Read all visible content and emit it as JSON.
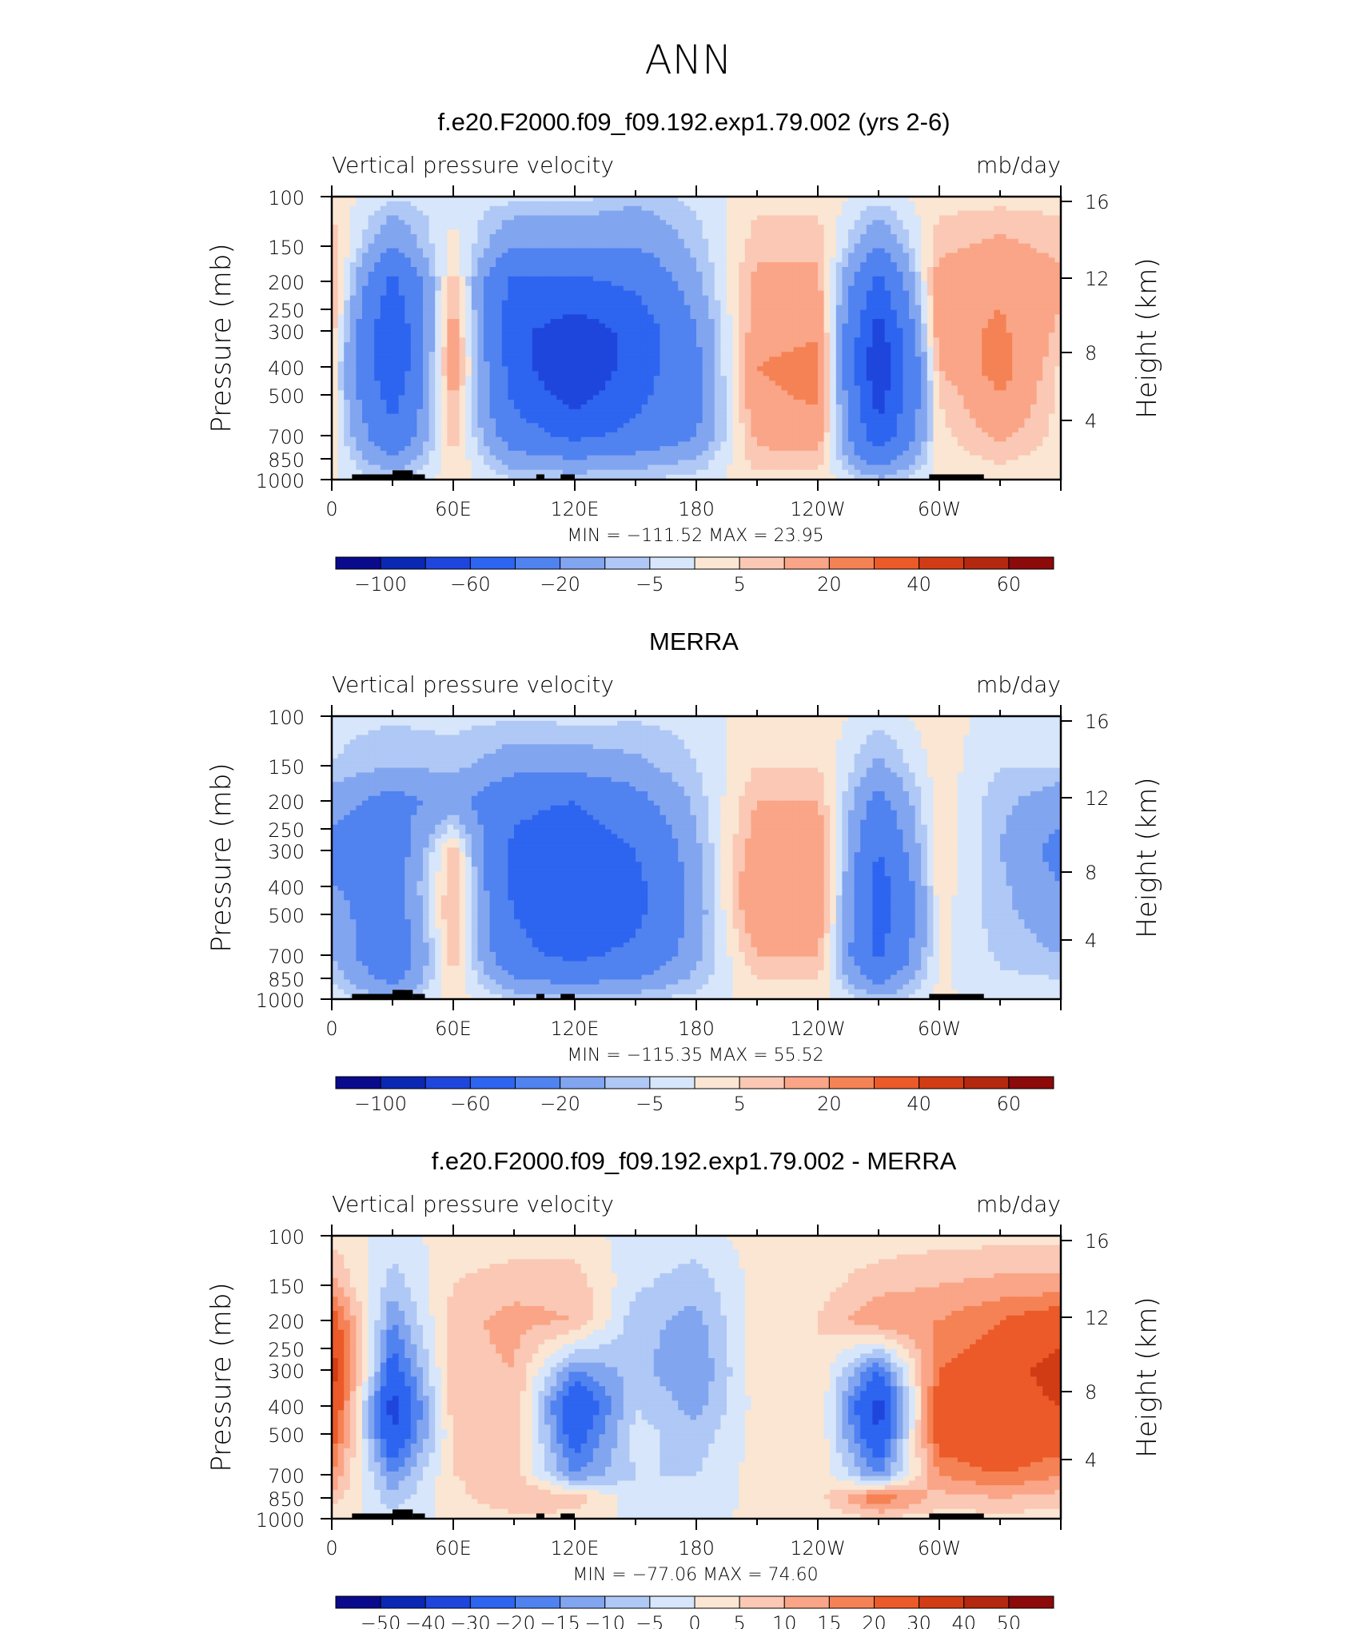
{
  "suptitle": "ANN",
  "panels": [
    {
      "title": "f.e20.F2000.f09_f09.192.exp1.79.002 (yrs 2-6)",
      "left_label": "Vertical pressure velocity",
      "right_label": "mb/day",
      "min_max": "MIN = −111.52   MAX =   23.95",
      "colorbar_labels": [
        "−100",
        "−60",
        "−20",
        "−5",
        "5",
        "20",
        "40",
        "60"
      ]
    },
    {
      "title": "MERRA",
      "left_label": "Vertical pressure velocity",
      "right_label": "mb/day",
      "min_max": "MIN = −115.35   MAX =   55.52",
      "colorbar_labels": [
        "−100",
        "−60",
        "−20",
        "−5",
        "5",
        "20",
        "40",
        "60"
      ]
    },
    {
      "title": "f.e20.F2000.f09_f09.192.exp1.79.002 - MERRA",
      "left_label": "Vertical pressure velocity",
      "right_label": "mb/day",
      "min_max": "MIN = −77.06   MAX =   74.60",
      "colorbar_labels": [
        "−50",
        "−40",
        "−30",
        "−20",
        "−15",
        "−10",
        "−5",
        "0",
        "5",
        "10",
        "15",
        "20",
        "30",
        "40",
        "50"
      ]
    }
  ],
  "axes": {
    "ylabel_left": "Pressure (mb)",
    "ylabel_right": "Height (km)",
    "pressure_ticks": [
      "100",
      "150",
      "200",
      "250",
      "300",
      "400",
      "500",
      "700",
      "850",
      "1000"
    ],
    "height_ticks": [
      "16",
      "12",
      "8",
      "4"
    ],
    "lon_ticks": [
      "0",
      "60E",
      "120E",
      "180",
      "120W",
      "60W"
    ]
  },
  "colors": {
    "abs_palette": [
      "#0a0a8c",
      "#0a28b4",
      "#1e46dc",
      "#2d64f0",
      "#5082f0",
      "#82a5f0",
      "#afc8f5",
      "#d7e6fa",
      "#fae6d2",
      "#fac8b4",
      "#faa587",
      "#f58255",
      "#eb5a28",
      "#d23c14",
      "#b4280f",
      "#8c0a0a"
    ],
    "diff_palette": [
      "#0a0a8c",
      "#0a28b4",
      "#1e46dc",
      "#2d64f0",
      "#5082f0",
      "#82a5f0",
      "#afc8f5",
      "#d7e6fa",
      "#fae6d2",
      "#fac8b4",
      "#faa587",
      "#f58255",
      "#eb5a28",
      "#d23c14",
      "#b4280f",
      "#8c0a0a"
    ]
  },
  "chart_data": [
    {
      "type": "heatmap",
      "title": "f.e20.F2000.f09_f09.192.exp1.79.002 (yrs 2-6)",
      "variable": "Vertical pressure velocity",
      "units": "mb/day",
      "x": [
        0,
        30,
        60,
        90,
        120,
        150,
        180,
        210,
        240,
        270,
        300,
        330
      ],
      "y_pressure": [
        100,
        150,
        200,
        300,
        400,
        500,
        700,
        850,
        1000
      ],
      "values": [
        [
          3,
          -4,
          -3,
          -3,
          -3,
          -8,
          -3,
          3,
          3,
          -3,
          3,
          3
        ],
        [
          8,
          -20,
          3,
          -20,
          -20,
          -20,
          -8,
          8,
          8,
          -20,
          8,
          12
        ],
        [
          12,
          -45,
          8,
          -45,
          -45,
          -35,
          -12,
          12,
          12,
          -45,
          15,
          18
        ],
        [
          8,
          -60,
          15,
          -55,
          -70,
          -55,
          -20,
          15,
          18,
          -70,
          15,
          22
        ],
        [
          4,
          -60,
          18,
          -50,
          -80,
          -50,
          -25,
          20,
          25,
          -80,
          10,
          25
        ],
        [
          3,
          -50,
          12,
          -45,
          -70,
          -45,
          -25,
          18,
          22,
          -70,
          5,
          20
        ],
        [
          3,
          -35,
          8,
          -30,
          -45,
          -35,
          -20,
          12,
          15,
          -55,
          3,
          12
        ],
        [
          2,
          -20,
          5,
          -15,
          -20,
          -15,
          -10,
          8,
          8,
          -30,
          2,
          6
        ],
        [
          1,
          -5,
          2,
          -5,
          -5,
          -5,
          -3,
          3,
          3,
          -8,
          1,
          2
        ]
      ],
      "contour_levels": [
        -100,
        -80,
        -60,
        -40,
        -20,
        -10,
        -5,
        0,
        5,
        10,
        20,
        30,
        40,
        50,
        60
      ],
      "min": -111.52,
      "max": 23.95,
      "ylim_pressure": [
        1000,
        100
      ],
      "ylim_height_km": [
        0,
        16
      ],
      "xlim": [
        0,
        360
      ]
    },
    {
      "type": "heatmap",
      "title": "MERRA",
      "variable": "Vertical pressure velocity",
      "units": "mb/day",
      "x": [
        0,
        30,
        60,
        90,
        120,
        150,
        180,
        210,
        240,
        270,
        300,
        330
      ],
      "y_pressure": [
        100,
        150,
        200,
        300,
        400,
        500,
        700,
        850,
        1000
      ],
      "values": [
        [
          -3,
          -4,
          -3,
          -4,
          -3,
          -4,
          -3,
          3,
          3,
          -3,
          3,
          -3
        ],
        [
          -5,
          -10,
          -8,
          -15,
          -15,
          -12,
          -5,
          5,
          5,
          -12,
          3,
          -5
        ],
        [
          -15,
          -25,
          -15,
          -35,
          -40,
          -25,
          -8,
          10,
          10,
          -25,
          3,
          -8
        ],
        [
          -25,
          -30,
          8,
          -45,
          -55,
          -40,
          -12,
          15,
          18,
          -40,
          5,
          -10
        ],
        [
          -20,
          -25,
          10,
          -45,
          -60,
          -45,
          -15,
          20,
          20,
          -50,
          3,
          -8
        ],
        [
          -15,
          -30,
          12,
          -40,
          -55,
          -45,
          -15,
          18,
          18,
          -50,
          2,
          -8
        ],
        [
          -10,
          -35,
          8,
          -35,
          -45,
          -35,
          -12,
          10,
          10,
          -45,
          2,
          -6
        ],
        [
          -5,
          -25,
          5,
          -20,
          -25,
          -20,
          -8,
          5,
          5,
          -25,
          1,
          -4
        ],
        [
          -2,
          -8,
          2,
          -5,
          -8,
          -5,
          -3,
          2,
          2,
          -8,
          1,
          -2
        ]
      ],
      "contour_levels": [
        -100,
        -80,
        -60,
        -40,
        -20,
        -10,
        -5,
        0,
        5,
        10,
        20,
        30,
        40,
        50,
        60
      ],
      "min": -115.35,
      "max": 55.52,
      "ylim_pressure": [
        1000,
        100
      ],
      "ylim_height_km": [
        0,
        16
      ],
      "xlim": [
        0,
        360
      ]
    },
    {
      "type": "heatmap",
      "title": "f.e20.F2000.f09_f09.192.exp1.79.002 - MERRA",
      "variable": "Vertical pressure velocity",
      "units": "mb/day",
      "x": [
        0,
        30,
        60,
        90,
        120,
        150,
        180,
        210,
        240,
        270,
        300,
        330
      ],
      "y_pressure": [
        100,
        150,
        200,
        300,
        400,
        500,
        700,
        850,
        1000
      ],
      "values": [
        [
          3,
          -2,
          2,
          2,
          2,
          -2,
          -2,
          2,
          2,
          2,
          3,
          3
        ],
        [
          12,
          -8,
          5,
          8,
          8,
          -4,
          -8,
          2,
          3,
          8,
          10,
          12
        ],
        [
          25,
          -15,
          8,
          12,
          10,
          -8,
          -12,
          3,
          5,
          15,
          15,
          20
        ],
        [
          35,
          -25,
          8,
          10,
          -15,
          -8,
          -15,
          3,
          5,
          -20,
          20,
          25
        ],
        [
          30,
          -35,
          8,
          10,
          -30,
          -5,
          -12,
          2,
          5,
          -35,
          25,
          25
        ],
        [
          25,
          -30,
          5,
          10,
          -25,
          -3,
          -8,
          2,
          5,
          -30,
          25,
          30
        ],
        [
          15,
          -15,
          5,
          8,
          -15,
          -5,
          -5,
          2,
          5,
          -15,
          15,
          20
        ],
        [
          8,
          -8,
          3,
          10,
          8,
          -3,
          -3,
          1,
          3,
          20,
          8,
          10
        ],
        [
          2,
          -3,
          1,
          3,
          3,
          -1,
          -1,
          1,
          1,
          5,
          2,
          3
        ]
      ],
      "contour_levels": [
        -50,
        -40,
        -30,
        -20,
        -15,
        -10,
        -5,
        0,
        5,
        10,
        15,
        20,
        30,
        40,
        50
      ],
      "min": -77.06,
      "max": 74.6,
      "ylim_pressure": [
        1000,
        100
      ],
      "ylim_height_km": [
        0,
        16
      ],
      "xlim": [
        0,
        360
      ]
    }
  ]
}
